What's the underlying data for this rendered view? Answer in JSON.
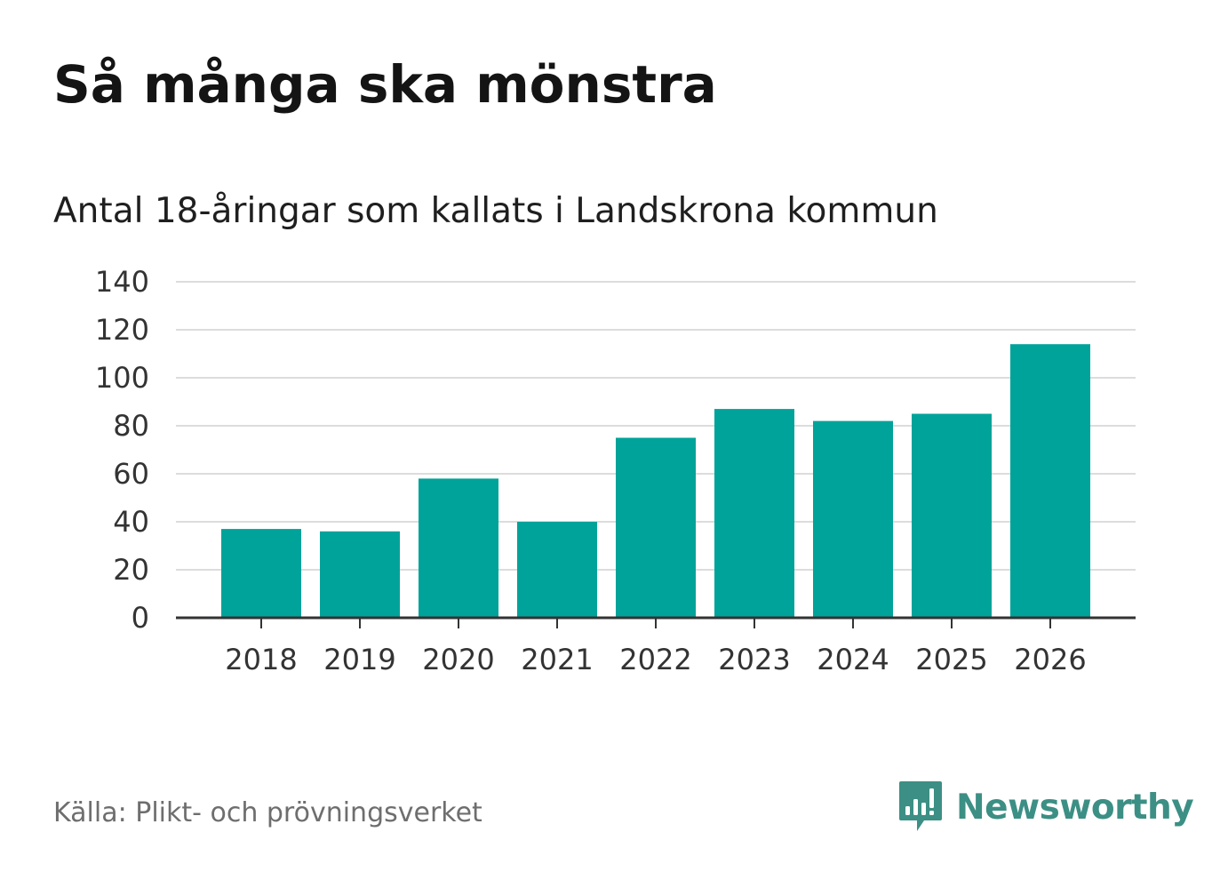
{
  "title": "Så många ska mönstra",
  "subtitle": "Antal 18-åringar som kallats i Landskrona kommun",
  "source": "Källa: Plikt- och prövningsverket",
  "brand": {
    "name": "Newsworthy",
    "icon": "newsworthy-logo-icon",
    "color": "#3c8f84"
  },
  "colors": {
    "bar": "#00a39a",
    "grid": "#dcdcdc",
    "axis": "#333333",
    "tick_text": "#333333"
  },
  "chart_data": {
    "type": "bar",
    "title": "Så många ska mönstra",
    "subtitle": "Antal 18-åringar som kallats i Landskrona kommun",
    "xlabel": "",
    "ylabel": "",
    "categories": [
      "2018",
      "2019",
      "2020",
      "2021",
      "2022",
      "2023",
      "2024",
      "2025",
      "2026"
    ],
    "values": [
      37,
      36,
      58,
      40,
      75,
      87,
      82,
      85,
      114
    ],
    "ylim": [
      0,
      140
    ],
    "yticks": [
      0,
      20,
      40,
      60,
      80,
      100,
      120,
      140
    ],
    "grid": true,
    "legend": "none"
  }
}
